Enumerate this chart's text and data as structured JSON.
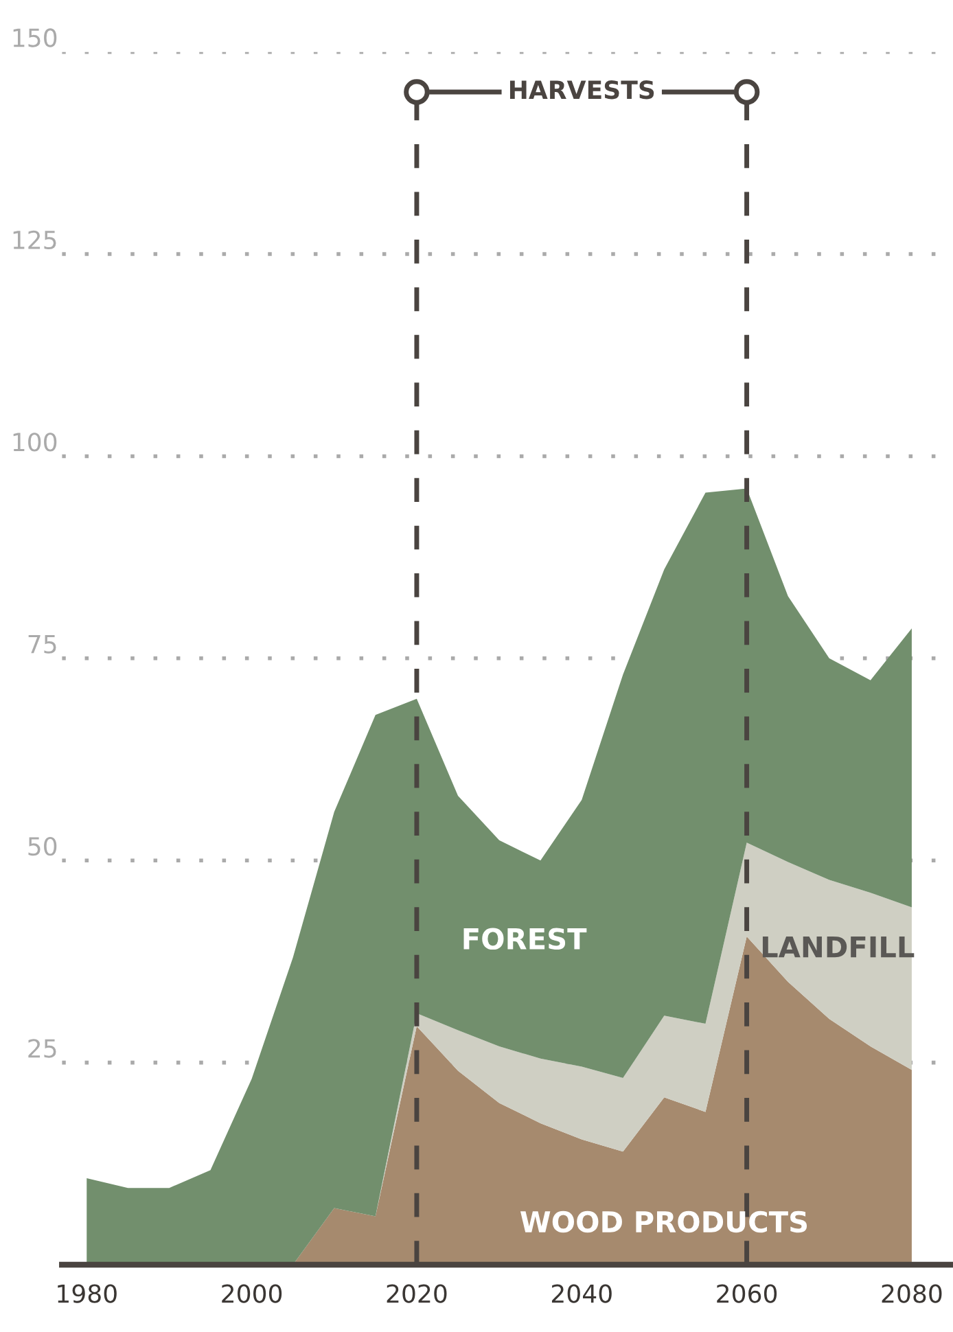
{
  "chart_data": {
    "type": "area",
    "stacked": true,
    "x": [
      1980,
      1985,
      1990,
      1995,
      2000,
      2005,
      2010,
      2015,
      2020,
      2025,
      2030,
      2035,
      2040,
      2045,
      2050,
      2055,
      2060,
      2065,
      2070,
      2075,
      2080
    ],
    "series": [
      {
        "name": "WOOD PRODUCTS",
        "color": "#a68a6e",
        "values": [
          0,
          0,
          0,
          0,
          0,
          0,
          7,
          6,
          29.5,
          24,
          20,
          17.5,
          15.5,
          14,
          20.7,
          18.9,
          40.6,
          35,
          30.4,
          27,
          24.1
        ]
      },
      {
        "name": "LANDFILL",
        "color": "#cfcfc3",
        "values": [
          0,
          0,
          0,
          0,
          0,
          0,
          0,
          0,
          1.6,
          5,
          7,
          8,
          9,
          9.1,
          10.1,
          10.9,
          11.6,
          14.8,
          17.2,
          19,
          20.1
        ]
      },
      {
        "name": "FOREST",
        "color": "#728f6d",
        "values": [
          10.7,
          9.5,
          9.5,
          11.7,
          23,
          38,
          49,
          62,
          38.9,
          29,
          25.5,
          24.5,
          33,
          49.9,
          55.2,
          65.7,
          43.8,
          32.9,
          27.4,
          26.3,
          34.5
        ]
      }
    ],
    "xlim": [
      1977,
      2085
    ],
    "xticks": [
      1980,
      2000,
      2020,
      2040,
      2060,
      2080
    ],
    "ylim": [
      0,
      150
    ],
    "yticks": [
      {
        "value": 0,
        "label": null
      },
      25,
      50,
      75,
      100,
      125,
      150
    ],
    "grid": "y",
    "ref_lines": [
      {
        "axis": "x",
        "value": 2020,
        "label": null,
        "color": "#4a4440",
        "line_style": "dashed"
      },
      {
        "axis": "x",
        "value": 2060,
        "label": null,
        "color": "#4a4440",
        "line_style": "dashed"
      }
    ],
    "annotations": [
      "HARVESTS"
    ]
  }
}
